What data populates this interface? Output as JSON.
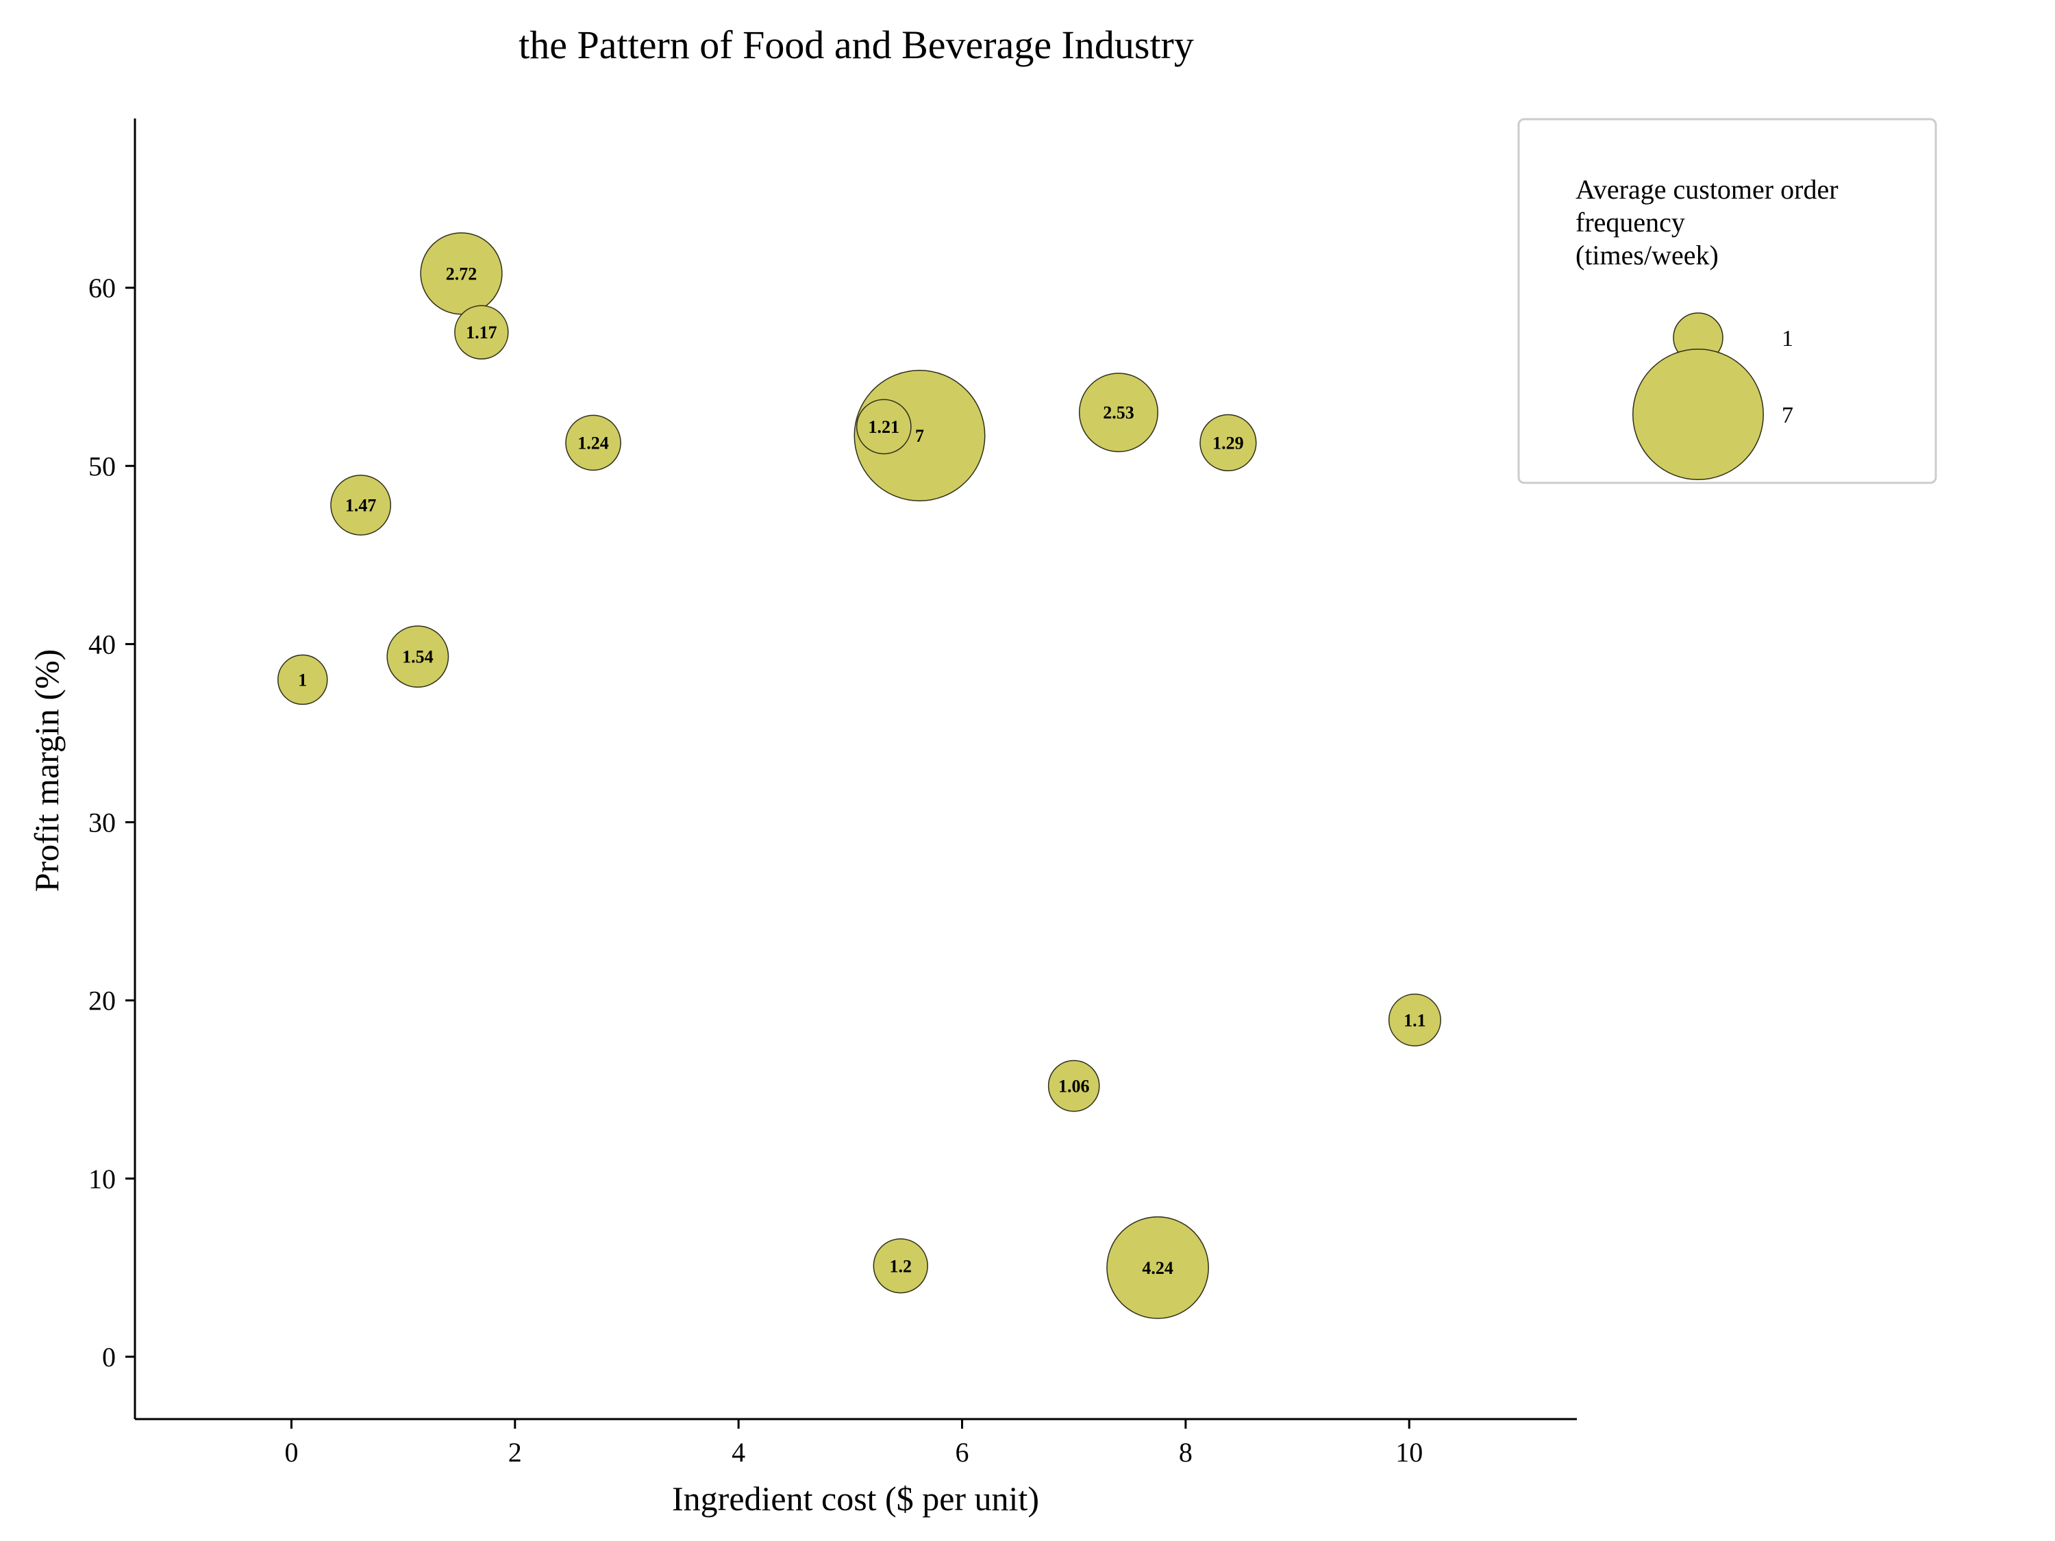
{
  "chart_data": {
    "type": "scatter",
    "title": "the Pattern of Food and Beverage Industry",
    "xlabel": "Ingredient cost ($ per unit)",
    "ylabel": "Profit margin (%)",
    "xlim": [
      -1.4,
      11.5
    ],
    "ylim": [
      -3.5,
      69.5
    ],
    "xticks": [
      0,
      2,
      4,
      6,
      8,
      10
    ],
    "yticks": [
      0,
      10,
      20,
      30,
      40,
      50,
      60
    ],
    "size_field": "Average customer order frequency (times/week)",
    "colors": {
      "bubble": "#cfcc62",
      "edge": "#2f2f1a"
    },
    "points": [
      {
        "x": 0.1,
        "y": 38.0,
        "size": 1,
        "label": "1"
      },
      {
        "x": 0.62,
        "y": 47.8,
        "size": 1.47,
        "label": "1.47"
      },
      {
        "x": 1.13,
        "y": 39.3,
        "size": 1.54,
        "label": "1.54"
      },
      {
        "x": 1.52,
        "y": 60.8,
        "size": 2.72,
        "label": "2.72"
      },
      {
        "x": 1.7,
        "y": 57.5,
        "size": 1.17,
        "label": "1.17"
      },
      {
        "x": 2.7,
        "y": 51.3,
        "size": 1.24,
        "label": "1.24"
      },
      {
        "x": 5.62,
        "y": 51.7,
        "size": 7,
        "label": "7"
      },
      {
        "x": 5.3,
        "y": 52.2,
        "size": 1.21,
        "label": "1.21"
      },
      {
        "x": 5.45,
        "y": 5.1,
        "size": 1.2,
        "label": "1.2"
      },
      {
        "x": 7.0,
        "y": 15.2,
        "size": 1.06,
        "label": "1.06"
      },
      {
        "x": 7.4,
        "y": 53.0,
        "size": 2.53,
        "label": "2.53"
      },
      {
        "x": 7.75,
        "y": 5.0,
        "size": 4.24,
        "label": "4.24"
      },
      {
        "x": 8.38,
        "y": 51.3,
        "size": 1.29,
        "label": "1.29"
      },
      {
        "x": 10.05,
        "y": 18.9,
        "size": 1.1,
        "label": "1.1"
      }
    ],
    "legend": {
      "title_lines": [
        "Average customer order",
        "frequency",
        "(times/week)"
      ],
      "entries": [
        {
          "size": 1,
          "label": "1"
        },
        {
          "size": 7,
          "label": "7"
        }
      ],
      "location": "top-right"
    }
  }
}
